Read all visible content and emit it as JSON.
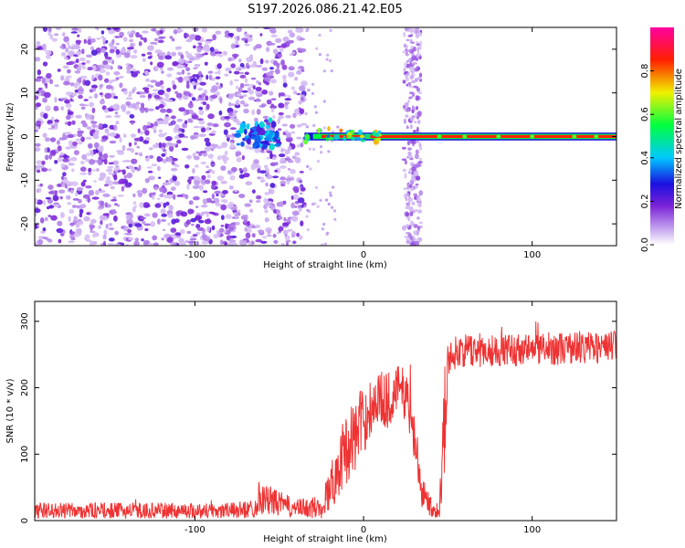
{
  "chart_data": [
    {
      "type": "heatmap",
      "title": "S197.2026.086.21.42.E05",
      "xlabel": "Height of straight line (km)",
      "ylabel": "Frequency (Hz)",
      "xlim": [
        -195,
        150
      ],
      "ylim": [
        -25,
        25
      ],
      "xticks": [
        -100,
        0,
        100
      ],
      "xtick_labels": [
        "-100",
        "0",
        "100"
      ],
      "yticks": [
        -20,
        -10,
        0,
        10,
        20
      ],
      "ytick_labels": [
        "-20",
        "-10",
        "0",
        "10",
        "20"
      ],
      "description_regions": [
        {
          "x": [
            -195,
            -35
          ],
          "freq": [
            -25,
            25
          ],
          "amplitude": "scattered low (0.05-0.25)"
        },
        {
          "x": [
            -35,
            150
          ],
          "freq": [
            -0.7,
            0.7
          ],
          "amplitude": "narrow tone, high (0.85-0.95)"
        },
        {
          "x": [
            22,
            36
          ],
          "freq": [
            -25,
            25
          ],
          "amplitude": "vertical low-amplitude stripe"
        }
      ],
      "colorbar": {
        "label": "Normalized spectral amplitude",
        "range": [
          0,
          1
        ],
        "ticks": [
          0.0,
          0.2,
          0.4,
          0.6,
          0.8
        ],
        "tick_labels": [
          "0.0",
          "0.2",
          "0.4",
          "0.6",
          "0.8"
        ],
        "colormap": "rainbow (white-purple-blue-cyan-green-yellow-red-magenta)"
      }
    },
    {
      "type": "line",
      "xlabel": "Height of straight line (km)",
      "ylabel": "SNR (10 * v/v)",
      "xlim": [
        -195,
        150
      ],
      "ylim": [
        0,
        330
      ],
      "xticks": [
        -100,
        0,
        100
      ],
      "xtick_labels": [
        "-100",
        "0",
        "100"
      ],
      "yticks": [
        0,
        100,
        200,
        300
      ],
      "ytick_labels": [
        "0",
        "100",
        "200",
        "300"
      ],
      "series": [
        {
          "name": "SNR",
          "color": "#ee3333",
          "envelope": {
            "x": [
              -195,
              -80,
              -65,
              -62,
              -40,
              -25,
              -18,
              -12,
              -5,
              0,
              5,
              10,
              15,
              20,
              25,
              30,
              35,
              40,
              45,
              48,
              50,
              55,
              100,
              150
            ],
            "mean": [
              15,
              15,
              18,
              35,
              18,
              20,
              60,
              100,
              130,
              150,
              175,
              185,
              180,
              200,
              190,
              130,
              40,
              20,
              15,
              150,
              240,
              255,
              258,
              262
            ],
            "amp": [
              12,
              12,
              14,
              25,
              14,
              18,
              40,
              50,
              60,
              50,
              45,
              40,
              45,
              35,
              40,
              45,
              25,
              15,
              10,
              90,
              25,
              25,
              25,
              25
            ]
          }
        }
      ]
    }
  ]
}
